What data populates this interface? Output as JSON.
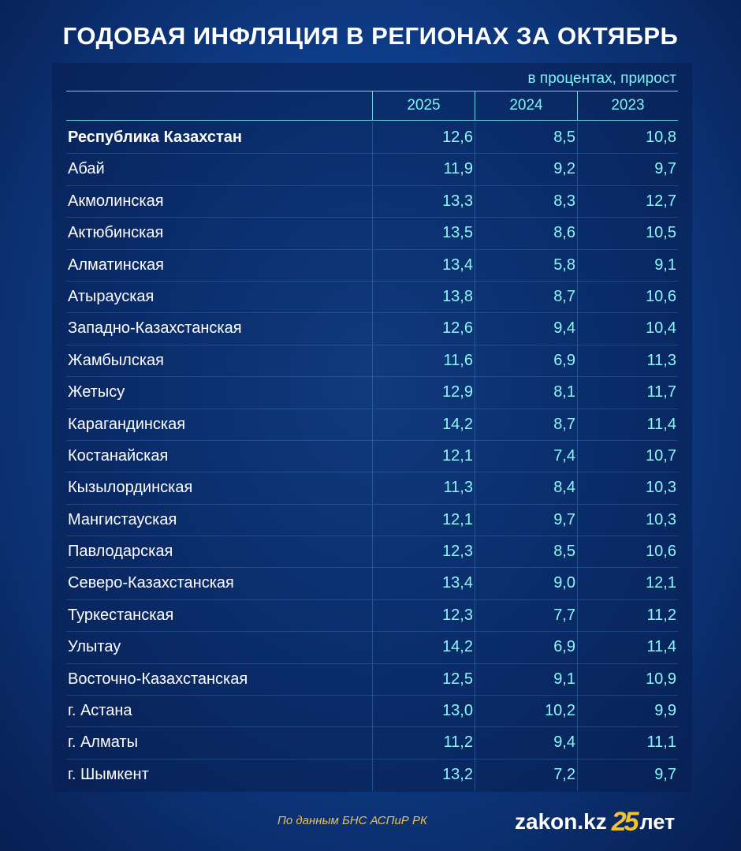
{
  "title": "ГОДОВАЯ ИНФЛЯЦИЯ В РЕГИОНАХ ЗА ОКТЯБРЬ",
  "unit_note": "в процентах, прирост",
  "columns": [
    "2025",
    "2024",
    "2023"
  ],
  "rows": [
    {
      "region": "Республика Казахстан",
      "v2025": "12,6",
      "v2024": "8,5",
      "v2023": "10,8"
    },
    {
      "region": "Абай",
      "v2025": "11,9",
      "v2024": "9,2",
      "v2023": "9,7"
    },
    {
      "region": "Акмолинская",
      "v2025": "13,3",
      "v2024": "8,3",
      "v2023": "12,7"
    },
    {
      "region": "Актюбинская",
      "v2025": "13,5",
      "v2024": "8,6",
      "v2023": "10,5"
    },
    {
      "region": "Алматинская",
      "v2025": "13,4",
      "v2024": "5,8",
      "v2023": "9,1"
    },
    {
      "region": "Атырауская",
      "v2025": "13,8",
      "v2024": "8,7",
      "v2023": "10,6"
    },
    {
      "region": "Западно-Казахстанская",
      "v2025": "12,6",
      "v2024": "9,4",
      "v2023": "10,4"
    },
    {
      "region": "Жамбылская",
      "v2025": "11,6",
      "v2024": "6,9",
      "v2023": "11,3"
    },
    {
      "region": "Жетысу",
      "v2025": "12,9",
      "v2024": "8,1",
      "v2023": "11,7"
    },
    {
      "region": "Карагандинская",
      "v2025": "14,2",
      "v2024": "8,7",
      "v2023": "11,4"
    },
    {
      "region": "Костанайская",
      "v2025": "12,1",
      "v2024": "7,4",
      "v2023": "10,7"
    },
    {
      "region": "Кызылординская",
      "v2025": "11,3",
      "v2024": "8,4",
      "v2023": "10,3"
    },
    {
      "region": "Мангистауская",
      "v2025": "12,1",
      "v2024": "9,7",
      "v2023": "10,3"
    },
    {
      "region": "Павлодарская",
      "v2025": "12,3",
      "v2024": "8,5",
      "v2023": "10,6"
    },
    {
      "region": "Северо-Казахстанская",
      "v2025": "13,4",
      "v2024": "9,0",
      "v2023": "12,1"
    },
    {
      "region": "Туркестанская",
      "v2025": "12,3",
      "v2024": "7,7",
      "v2023": "11,2"
    },
    {
      "region": "Улытау",
      "v2025": "14,2",
      "v2024": "6,9",
      "v2023": "11,4"
    },
    {
      "region": "Восточно-Казахстанская",
      "v2025": "12,5",
      "v2024": "9,1",
      "v2023": "10,9"
    },
    {
      "region": "г. Астана",
      "v2025": "13,0",
      "v2024": "10,2",
      "v2023": "9,9"
    },
    {
      "region": "г. Алматы",
      "v2025": "11,2",
      "v2024": "9,4",
      "v2023": "11,1"
    },
    {
      "region": "г. Шымкент",
      "v2025": "13,2",
      "v2024": "7,2",
      "v2023": "9,7"
    }
  ],
  "source_note": "По данным БНС АСПиР РК",
  "logo": {
    "site": "zakon.kz",
    "years": "25",
    "word": "лет"
  },
  "colors": {
    "accent_text": "#8ef6f6",
    "source_text": "#e6c15a",
    "logo_years": "#f2c230",
    "background": "#0f3f8c"
  }
}
